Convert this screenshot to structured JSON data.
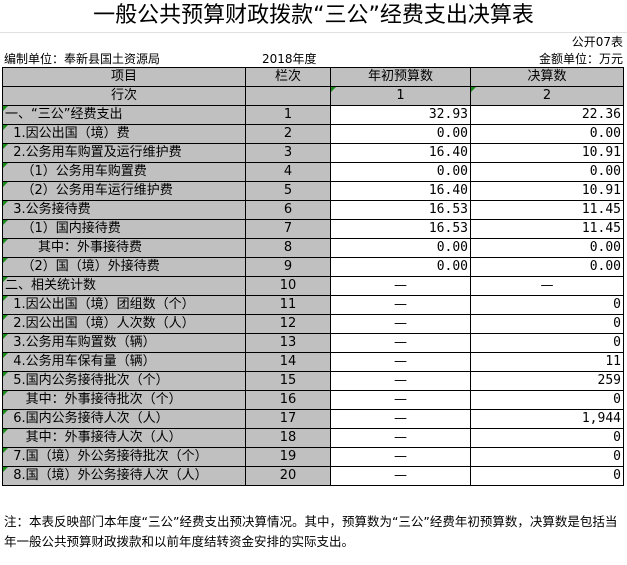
{
  "title": "一般公共预算财政拨款“三公”经费支出决算表",
  "form_no": "公开07表",
  "unit": "编制单位：奉新县国土资源局",
  "year": "2018年度",
  "currency": "金额单位：万元",
  "headers": {
    "item": "项目",
    "col": "栏次",
    "budget": "年初预算数",
    "actual": "决算数"
  },
  "row_index": {
    "label": "行次",
    "budget": "1",
    "actual": "2"
  },
  "rows": [
    {
      "item": "一、“三公”经费支出",
      "no": "1",
      "budget": "32.93",
      "actual": "22.36"
    },
    {
      "item": "  1.因公出国（境）费",
      "no": "2",
      "budget": "0.00",
      "actual": "0.00"
    },
    {
      "item": "  2.公务用车购置及运行维护费",
      "no": "3",
      "budget": "16.40",
      "actual": "10.91"
    },
    {
      "item": "    （1）公务用车购置费",
      "no": "4",
      "budget": "0.00",
      "actual": "0.00"
    },
    {
      "item": "    （2）公务用车运行维护费",
      "no": "5",
      "budget": "16.40",
      "actual": "10.91"
    },
    {
      "item": "  3.公务接待费",
      "no": "6",
      "budget": "16.53",
      "actual": "11.45"
    },
    {
      "item": "    （1）国内接待费",
      "no": "7",
      "budget": "16.53",
      "actual": "11.45"
    },
    {
      "item": "        其中：外事接待费",
      "no": "8",
      "budget": "0.00",
      "actual": "0.00"
    },
    {
      "item": "    （2）国（境）外接待费",
      "no": "9",
      "budget": "0.00",
      "actual": "0.00"
    },
    {
      "item": "二、相关统计数",
      "no": "10",
      "budget": "—",
      "actual": "—"
    },
    {
      "item": "  1.因公出国（境）团组数（个）",
      "no": "11",
      "budget": "—",
      "actual": "0"
    },
    {
      "item": "  2.因公出国（境）人次数（人）",
      "no": "12",
      "budget": "—",
      "actual": "0"
    },
    {
      "item": "  3.公务用车购置数（辆）",
      "no": "13",
      "budget": "—",
      "actual": "0"
    },
    {
      "item": "  4.公务用车保有量（辆）",
      "no": "14",
      "budget": "—",
      "actual": "11"
    },
    {
      "item": "  5.国内公务接待批次（个）",
      "no": "15",
      "budget": "—",
      "actual": "259"
    },
    {
      "item": "     其中：外事接待批次（个）",
      "no": "16",
      "budget": "—",
      "actual": "0"
    },
    {
      "item": "  6.国内公务接待人次（人）",
      "no": "17",
      "budget": "—",
      "actual": "1,944"
    },
    {
      "item": "     其中：外事接待人次（人）",
      "no": "18",
      "budget": "—",
      "actual": "0"
    },
    {
      "item": "  7.国（境）外公务接待批次（个）",
      "no": "19",
      "budget": "—",
      "actual": "0"
    },
    {
      "item": "  8.国（境）外公务接待人次（人）",
      "no": "20",
      "budget": "—",
      "actual": "0"
    }
  ],
  "note": "注：本表反映部门本年度“三公”经费支出预决算情况。其中，预算数为“三公”经费年初预算数，决算数是包括当年一般公共预算财政拨款和以前年度结转资金安排的实际支出。"
}
